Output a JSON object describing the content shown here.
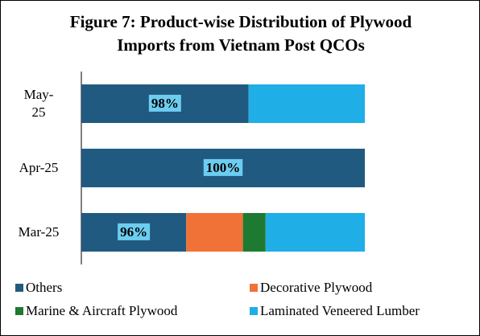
{
  "chart_data": {
    "type": "stacked-bar-horizontal",
    "title": "Figure 7: Product-wise Distribution of Plywood Imports from Vietnam Post QCOs",
    "categories": [
      "May-25",
      "Apr-25",
      "Mar-25"
    ],
    "annotations": [
      "98%",
      "100%",
      "96%"
    ],
    "xlim": [
      0,
      100
    ],
    "series": [
      {
        "name": "Others",
        "color": "#215a80",
        "values": [
          59,
          100,
          37
        ]
      },
      {
        "name": "Decorative Plywood",
        "color": "#f07236",
        "values": [
          0,
          0,
          20
        ]
      },
      {
        "name": "Marine & Aircraft Plywood",
        "color": "#1e7a30",
        "values": [
          0,
          0,
          8
        ]
      },
      {
        "name": "Laminated Veneered Lumber",
        "color": "#20aee6",
        "values": [
          41,
          0,
          35
        ]
      }
    ]
  }
}
